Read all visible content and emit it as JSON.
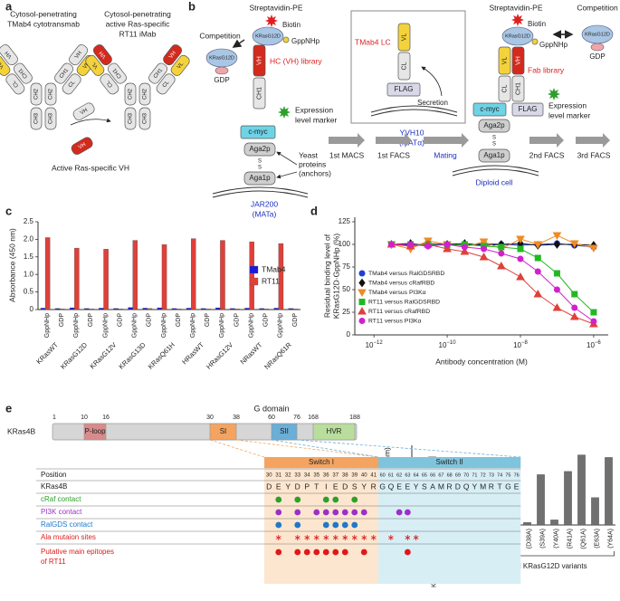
{
  "panel_labels": [
    "a",
    "b",
    "c",
    "d",
    "e"
  ],
  "panel_a": {
    "left_title": [
      "Cytosol-penetrating",
      "TMab4 cytotransmab"
    ],
    "right_title": [
      "Cytosol-penetrating",
      "active Ras-specific",
      "RT11 iMab"
    ],
    "domains": {
      "vh": "VH",
      "vl": "VL",
      "ch1": "CH1",
      "cl": "CL",
      "ch2": "CH2",
      "ch3": "CH3"
    },
    "caption": "Active Ras-specific VH"
  },
  "panel_b": {
    "streptavidin": "Streptavidin-PE",
    "biotin": "Biotin",
    "kras": "KRasG12D",
    "gppnhp": "GppNHp",
    "competition": "Competition",
    "gdp": "GDP",
    "hc_library": "HC (VH) library",
    "fab_library": "Fab library",
    "vh": "VH",
    "vl": "VL",
    "ch1": "CH1",
    "cl": "CL",
    "cmyc": "c-myc",
    "flag": "FLAG",
    "marker": [
      "Expression",
      "level marker"
    ],
    "aga2p": "Aga2p",
    "aga1p": "Aga1p",
    "ss": [
      "S",
      "S"
    ],
    "yeast": [
      "Yeast",
      "proteins",
      "(anchors)"
    ],
    "jar": "JAR200",
    "mata": "(MATa)",
    "lc": "TMab4 LC",
    "secretion": "Secretion",
    "yvh": "YVH10",
    "matalpha": "(MATα)",
    "diploid": "Diploid cell",
    "steps": [
      "1st MACS",
      "1st FACS",
      "Mating",
      "2nd FACS",
      "3rd FACS"
    ]
  },
  "chart_data": [
    {
      "type": "bar",
      "ylabel": "Absorbance (450 nm)",
      "categories": [
        "GppNHp",
        "GDP",
        "GppNHp",
        "GDP",
        "GppNHp",
        "GDP",
        "GppNHp",
        "GDP",
        "GppNHp",
        "GDP",
        "GppNHp",
        "GDP",
        "GppNHp",
        "GDP",
        "GppNHp",
        "GDP",
        "GppNHp",
        "GDP"
      ],
      "groups": [
        "KRasWT",
        "KRasG12D",
        "KRasG12V",
        "KRasG13D",
        "KRasQ61H",
        "HRasWT",
        "HRasG12V",
        "NRasWT",
        "NRasQ61R"
      ],
      "series": [
        {
          "name": "TMab4",
          "color": "#1a1adc",
          "values": [
            0.04,
            0.03,
            0.05,
            0.03,
            0.04,
            0.03,
            0.06,
            0.04,
            0.05,
            0.03,
            0.04,
            0.03,
            0.05,
            0.03,
            0.04,
            0.03,
            0.04,
            0.03
          ]
        },
        {
          "name": "RT11",
          "color": "#e0403a",
          "values": [
            2.05,
            0.02,
            1.75,
            0.02,
            1.72,
            0.02,
            1.97,
            0.03,
            1.85,
            0.02,
            2.02,
            0.02,
            1.97,
            0.02,
            1.93,
            0.02,
            1.88,
            0.02
          ]
        }
      ],
      "ylim": [
        0,
        2.5
      ],
      "yticks": [
        0,
        0.5,
        {
          "value": 1,
          "label": "1.0"
        },
        1.5,
        {
          "value": 2,
          "label": "2.0"
        },
        2.5
      ],
      "legend": "right"
    },
    {
      "type": "line",
      "xlabel": "Antibody concentration (M)",
      "ylabel": [
        "Residual binding level of",
        "KRasG12D·GppNHp (%)"
      ],
      "xscale": "log",
      "x": [
        3e-12,
        1e-11,
        3e-11,
        1e-10,
        3e-10,
        1e-09,
        3e-09,
        1e-08,
        3e-08,
        1e-07,
        3e-07,
        1e-06
      ],
      "series": [
        {
          "name": "TMab4 versus RalGDSRBD",
          "color": "#1f3fd8",
          "marker": "circle",
          "values": [
            100,
            99,
            101,
            100,
            99,
            101,
            100,
            99,
            100,
            101,
            99,
            97
          ]
        },
        {
          "name": "TMab4 versus cRafRBD",
          "color": "#111111",
          "marker": "diamond",
          "values": [
            100,
            101,
            99,
            100,
            101,
            99,
            100,
            101,
            99,
            100,
            100,
            99
          ]
        },
        {
          "name": "TMab4 versus PI3Kα",
          "color": "#f08a24",
          "marker": "triangle-down",
          "values": [
            100,
            95,
            104,
            100,
            97,
            103,
            95,
            106,
            100,
            110,
            101,
            96
          ]
        },
        {
          "name": "RT11 versus RalGDSRBD",
          "color": "#22b822",
          "marker": "square",
          "values": [
            100,
            100,
            100,
            99,
            100,
            98,
            97,
            95,
            85,
            68,
            45,
            25
          ]
        },
        {
          "name": "RT11 versus cRafRBD",
          "color": "#e0403a",
          "marker": "triangle-up",
          "values": [
            100,
            98,
            100,
            95,
            92,
            86,
            76,
            64,
            45,
            30,
            20,
            12
          ]
        },
        {
          "name": "RT11 versus PI3Kα",
          "color": "#d020d0",
          "marker": "circle",
          "values": [
            100,
            100,
            98,
            100,
            97,
            95,
            90,
            84,
            70,
            50,
            30,
            15
          ]
        }
      ],
      "xlim": [
        3e-13,
        2.5e-06
      ],
      "xticks": [
        {
          "value": 1e-12,
          "label": "10−12"
        },
        {
          "value": 1e-10,
          "label": "10−10"
        },
        {
          "value": 1e-08,
          "label": "10−8"
        },
        {
          "value": 1e-06,
          "label": "10−6"
        }
      ],
      "ylim": [
        0,
        130
      ],
      "yticks": [
        0,
        25,
        50,
        75,
        100,
        125
      ],
      "legend": "left"
    },
    {
      "type": "bar",
      "ylabel": "Absorbance (450 nm)",
      "group_label": "GppNHp-loaded KRasG12D variants",
      "color": "#707070",
      "categories": [
        "KRasG12D·GDP",
        "KRasG12D·GppNHp",
        "(E31A)",
        "(D33A)",
        "(P34A)",
        "(T35A)",
        "(I36A)",
        "(E37A)",
        "(D38A)",
        "(S39A)",
        "(Y40A)",
        "(R41A)",
        "(Q61A)",
        "(E63A)",
        "(Y64A)"
      ],
      "values": [
        0.07,
        1.07,
        0.84,
        0.07,
        0.08,
        0.15,
        0.1,
        0.2,
        0.04,
        0.79,
        0.08,
        0.84,
        1.1,
        0.43,
        1.06
      ],
      "ylim": [
        0,
        1.25
      ],
      "yticks": [
        0,
        0.5,
        {
          "value": 1,
          "label": "1.0"
        }
      ]
    }
  ],
  "panel_e": {
    "title": "G domain",
    "protein": "KRas4B",
    "positions_top": [
      1,
      10,
      16,
      30,
      38,
      60,
      76,
      168,
      188
    ],
    "regions": [
      "P-loop",
      "SI",
      "SII",
      "HVR"
    ],
    "switch1": "Switch I",
    "switch2": "Switch II",
    "position_label": "Position",
    "row_label": "KRas4B",
    "switch1_positions": [
      30,
      31,
      32,
      33,
      34,
      35,
      36,
      37,
      38,
      39,
      40,
      41
    ],
    "switch1_residues": [
      "D",
      "E",
      "Y",
      "D",
      "P",
      "T",
      "I",
      "E",
      "D",
      "S",
      "Y",
      "R"
    ],
    "switch2_positions": [
      60,
      61,
      62,
      63,
      64,
      65,
      66,
      67,
      68,
      69,
      70,
      71,
      72,
      73,
      74,
      75,
      76
    ],
    "switch2_residues": [
      "G",
      "Q",
      "E",
      "E",
      "Y",
      "S",
      "A",
      "M",
      "R",
      "D",
      "Q",
      "Y",
      "M",
      "R",
      "T",
      "G",
      "E"
    ],
    "rows": [
      {
        "label": [
          "cRaf contact"
        ],
        "color": "#2ca02c",
        "marker": "circle",
        "positions": [
          31,
          33,
          36,
          37,
          39
        ]
      },
      {
        "label": [
          "PI3K contact"
        ],
        "color": "#9b30c8",
        "marker": "circle",
        "positions": [
          31,
          33,
          35,
          36,
          37,
          38,
          39,
          40,
          62,
          63
        ]
      },
      {
        "label": [
          "RalGDS contact"
        ],
        "color": "#1f78c8",
        "marker": "circle",
        "positions": [
          31,
          33,
          36,
          37,
          38,
          39
        ]
      },
      {
        "label": [
          "Ala mutaion sites"
        ],
        "color": "#e02020",
        "marker": "asterisk",
        "positions": [
          31,
          33,
          34,
          35,
          36,
          37,
          38,
          39,
          40,
          41,
          61,
          63,
          64
        ]
      },
      {
        "label": [
          "Putative main epitopes",
          "of RT11"
        ],
        "color": "#e01818",
        "marker": "circle",
        "positions": [
          31,
          33,
          34,
          35,
          36,
          37,
          38,
          40,
          63
        ]
      }
    ]
  }
}
